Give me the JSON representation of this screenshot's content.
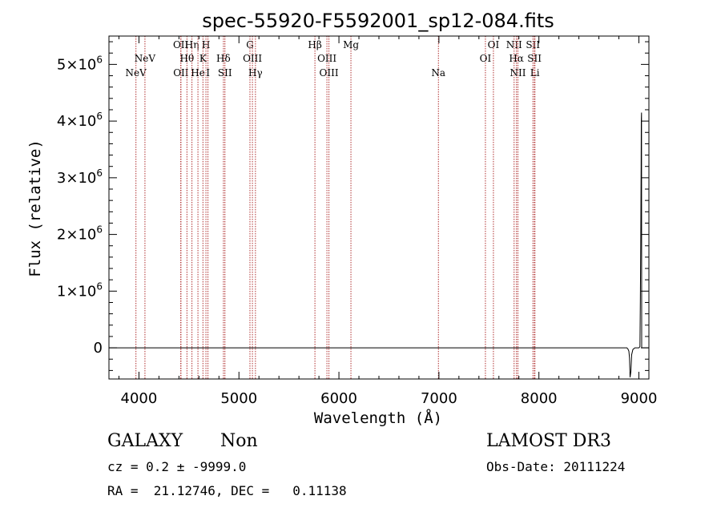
{
  "chart_data": {
    "type": "line",
    "title": "spec-55920-F5592001_sp12-084.fits",
    "xlabel": "Wavelength (Å)",
    "ylabel": "Flux (relative)",
    "xlim": [
      3700,
      9100
    ],
    "ylim": [
      -550000,
      5500000
    ],
    "x_ticks": [
      {
        "value": 4000,
        "label": "4000"
      },
      {
        "value": 5000,
        "label": "5000"
      },
      {
        "value": 6000,
        "label": "6000"
      },
      {
        "value": 7000,
        "label": "7000"
      },
      {
        "value": 8000,
        "label": "8000"
      },
      {
        "value": 9000,
        "label": "9000"
      }
    ],
    "y_ticks": [
      {
        "value": 0,
        "label": "0",
        "exp": ""
      },
      {
        "value": 1000000,
        "label": "1×10",
        "exp": "6"
      },
      {
        "value": 2000000,
        "label": "2×10",
        "exp": "6"
      },
      {
        "value": 3000000,
        "label": "3×10",
        "exp": "6"
      },
      {
        "value": 4000000,
        "label": "4×10",
        "exp": "6"
      },
      {
        "value": 5000000,
        "label": "5×10",
        "exp": "6"
      }
    ],
    "grid": false,
    "series": [
      {
        "x": [
          3700,
          8880,
          8890,
          8900,
          8906,
          8912,
          8920,
          8928,
          8940,
          8960,
          8990,
          9000,
          9010,
          9014,
          9018,
          9022,
          9024,
          9026,
          9028,
          9100
        ],
        "y": [
          0,
          0,
          -20000,
          -60000,
          -180000,
          -520000,
          -420000,
          -120000,
          -30000,
          0,
          0,
          0,
          20000,
          800000,
          1800000,
          3200000,
          4000000,
          4150000,
          0,
          0
        ]
      }
    ],
    "line_colors": {
      "spectrum": "#000000",
      "lines": "#b03030"
    },
    "spectral_lines": [
      {
        "x": 3970,
        "label": "NeV",
        "row": 2
      },
      {
        "x": 4060,
        "label": "NeV",
        "row": 1
      },
      {
        "x": 4418,
        "label": "OII",
        "row": 0
      },
      {
        "x": 4420,
        "label": "OII",
        "row": 2
      },
      {
        "x": 4480,
        "label": "Hθ",
        "row": 1
      },
      {
        "x": 4530,
        "label": "Hη",
        "row": 0
      },
      {
        "x": 4590,
        "label": "He",
        "row": 2
      },
      {
        "x": 4640,
        "label": "K",
        "row": 1
      },
      {
        "x": 4670,
        "label": "H",
        "row": 0
      },
      {
        "x": 4690,
        "label": "I",
        "row": 2
      },
      {
        "x": 4845,
        "label": "Hδ",
        "row": 1
      },
      {
        "x": 4860,
        "label": "SII",
        "row": 2
      },
      {
        "x": 5110,
        "label": "G",
        "row": 0
      },
      {
        "x": 5135,
        "label": "OIII",
        "row": 1
      },
      {
        "x": 5165,
        "label": "Hγ",
        "row": 2
      },
      {
        "x": 5760,
        "label": "Hβ",
        "row": 0
      },
      {
        "x": 5880,
        "label": "OIII",
        "row": 1
      },
      {
        "x": 5900,
        "label": "OIII",
        "row": 2
      },
      {
        "x": 6120,
        "label": "Mg",
        "row": 0
      },
      {
        "x": 6995,
        "label": "Na",
        "row": 2
      },
      {
        "x": 7465,
        "label": "OI",
        "row": 1
      },
      {
        "x": 7545,
        "label": "OI",
        "row": 0
      },
      {
        "x": 7752,
        "label": "NII",
        "row": 0
      },
      {
        "x": 7775,
        "label": "Hα",
        "row": 1
      },
      {
        "x": 7790,
        "label": "NII",
        "row": 2
      },
      {
        "x": 7940,
        "label": "SII",
        "row": 0
      },
      {
        "x": 7955,
        "label": "SII",
        "row": 1
      },
      {
        "x": 7960,
        "label": "Li",
        "row": 2
      }
    ]
  },
  "info": {
    "object_class": "GALAXY",
    "subclass": "Non",
    "survey": "LAMOST DR3",
    "redshift": "cz = 0.2 ± -9999.0",
    "obs_date": "Obs-Date: 20111224",
    "coords": "RA =  21.12746, DEC =   0.11138"
  }
}
